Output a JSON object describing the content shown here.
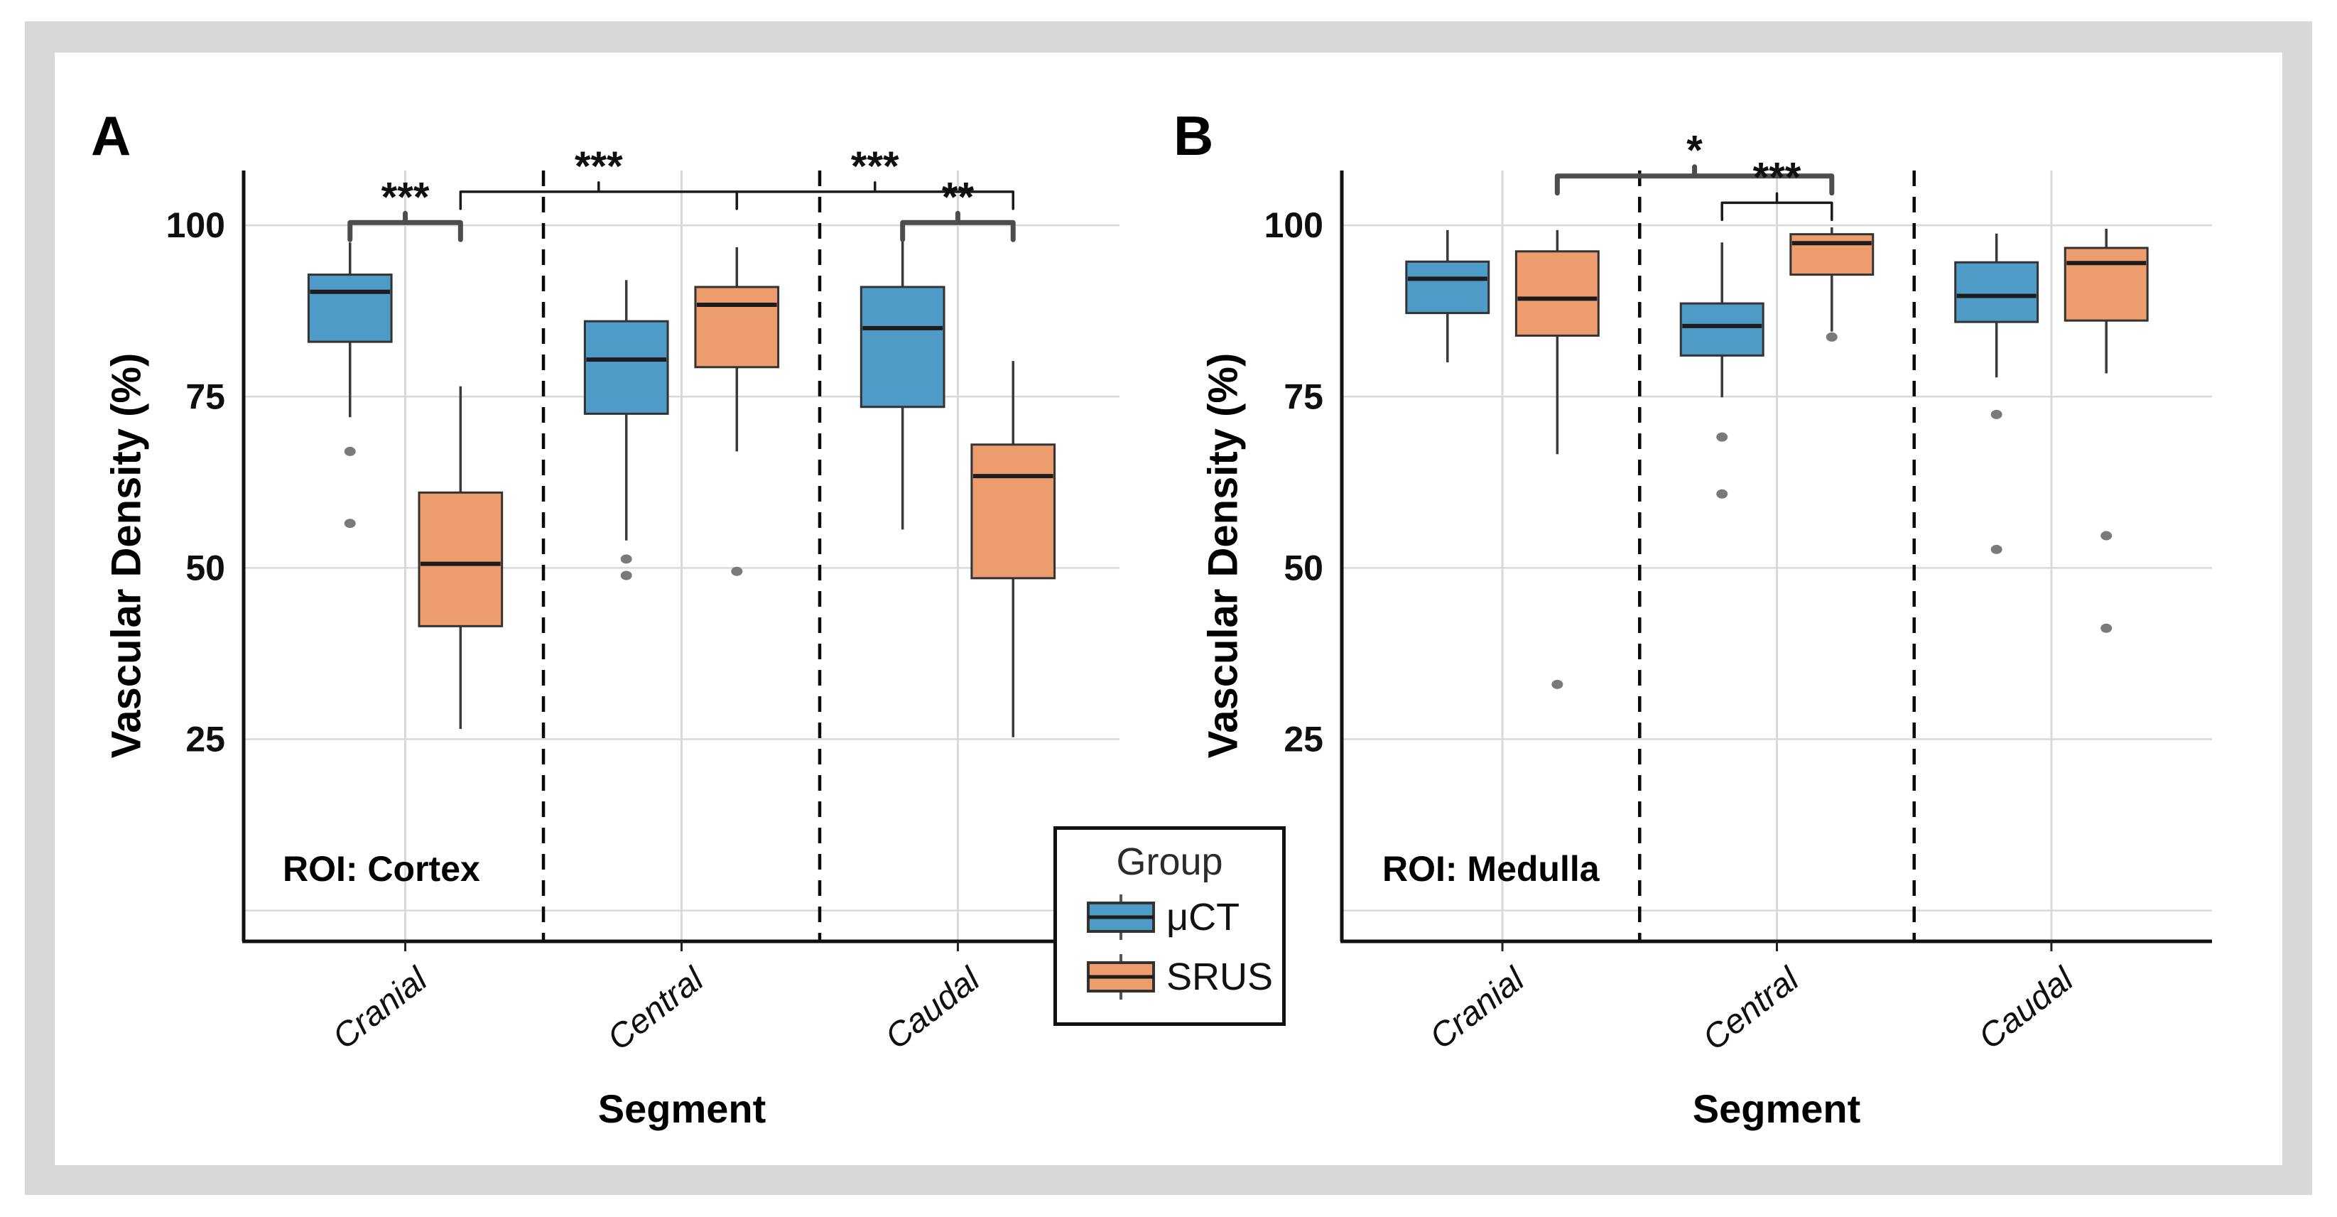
{
  "chart_data": {
    "type": "grouped_boxplot",
    "title": "",
    "ylabel": "Vascular Density (%)",
    "xlabel": "Segment",
    "yticks": [
      100,
      75,
      50,
      25
    ],
    "gridlines": [
      0,
      25,
      50,
      75,
      100
    ],
    "ylim": [
      -4.5,
      108
    ],
    "grid": "on",
    "categories": [
      "Cranial",
      "Central",
      "Caudal"
    ],
    "colors": {
      "uct_fill": "#4E9BC8",
      "srus_fill": "#EC9C6D",
      "box_border": "#333333",
      "median": "#1c1c1c",
      "whisker": "#3a3a3a",
      "outlier": "#7a7a7a",
      "gridline": "#d9d9d9",
      "divider": "#0a0a0a",
      "bracket_thick": "#4d4d4d",
      "bracket_thin": "#1a1a1a",
      "frame_gray": "#d8d8d8"
    },
    "legend": {
      "title": "Group",
      "position": "bottom-center-between-panels",
      "entries": [
        {
          "label": "μCT",
          "color": "#4E9BC8"
        },
        {
          "label": "SRUS",
          "color": "#EC9C6D"
        }
      ]
    },
    "panels": [
      {
        "label": "A",
        "roi_label": "ROI: Cortex",
        "series": [
          {
            "name": "μCT",
            "boxes": [
              {
                "category": "Cranial",
                "whislo": 72,
                "q1": 83,
                "med": 90.3,
                "q3": 92.8,
                "whishi": 97.5,
                "outliers": [
                  67,
                  56.5
                ]
              },
              {
                "category": "Central",
                "whislo": 54,
                "q1": 72.5,
                "med": 80.4,
                "q3": 86,
                "whishi": 92,
                "outliers": [
                  51.3,
                  48.9
                ]
              },
              {
                "category": "Caudal",
                "whislo": 55.6,
                "q1": 73.5,
                "med": 85,
                "q3": 91,
                "whishi": 97.6,
                "outliers": []
              }
            ]
          },
          {
            "name": "SRUS",
            "boxes": [
              {
                "category": "Cranial",
                "whislo": 26.5,
                "q1": 41.5,
                "med": 50.6,
                "q3": 61,
                "whishi": 76.5,
                "outliers": []
              },
              {
                "category": "Central",
                "whislo": 67,
                "q1": 79.3,
                "med": 88.4,
                "q3": 91,
                "whishi": 96.8,
                "outliers": [
                  49.5
                ]
              },
              {
                "category": "Caudal",
                "whislo": 25.3,
                "q1": 48.5,
                "med": 63.4,
                "q3": 68,
                "whishi": 80.2,
                "outliers": []
              }
            ]
          }
        ],
        "significance": [
          {
            "from": [
              "Cranial",
              "μCT"
            ],
            "to": [
              "Cranial",
              "SRUS"
            ],
            "label": "***",
            "y": 100.4,
            "weight": "thick"
          },
          {
            "from": [
              "Cranial",
              "SRUS"
            ],
            "to": [
              "Central",
              "SRUS"
            ],
            "label": "***",
            "y": 104.9,
            "weight": "thin"
          },
          {
            "from": [
              "Central",
              "SRUS"
            ],
            "to": [
              "Caudal",
              "SRUS"
            ],
            "label": "***",
            "y": 104.9,
            "weight": "thin"
          },
          {
            "from": [
              "Caudal",
              "μCT"
            ],
            "to": [
              "Caudal",
              "SRUS"
            ],
            "label": "**",
            "y": 100.4,
            "weight": "thick"
          }
        ]
      },
      {
        "label": "B",
        "roi_label": "ROI: Medulla",
        "series": [
          {
            "name": "μCT",
            "boxes": [
              {
                "category": "Cranial",
                "whislo": 80,
                "q1": 87.2,
                "med": 92.2,
                "q3": 94.7,
                "whishi": 99.3,
                "outliers": []
              },
              {
                "category": "Central",
                "whislo": 74.9,
                "q1": 81,
                "med": 85.3,
                "q3": 88.6,
                "whishi": 97.5,
                "outliers": [
                  69.1,
                  60.8
                ]
              },
              {
                "category": "Caudal",
                "whislo": 77.8,
                "q1": 85.9,
                "med": 89.7,
                "q3": 94.6,
                "whishi": 98.8,
                "outliers": [
                  72.4,
                  52.7
                ]
              }
            ]
          },
          {
            "name": "SRUS",
            "boxes": [
              {
                "category": "Cranial",
                "whislo": 66.6,
                "q1": 83.9,
                "med": 89.3,
                "q3": 96.2,
                "whishi": 99.3,
                "outliers": [
                  33
                ]
              },
              {
                "category": "Central",
                "whislo": 84.5,
                "q1": 92.8,
                "med": 97.4,
                "q3": 98.7,
                "whishi": 99.7,
                "outliers": [
                  83.7
                ]
              },
              {
                "category": "Caudal",
                "whislo": 78.4,
                "q1": 86.1,
                "med": 94.5,
                "q3": 96.7,
                "whishi": 99.5,
                "outliers": [
                  54.7,
                  41.2
                ]
              }
            ]
          }
        ],
        "significance": [
          {
            "from": [
              "Cranial",
              "SRUS"
            ],
            "to": [
              "Central",
              "SRUS"
            ],
            "label": "*",
            "y": 107.2,
            "weight": "thick"
          },
          {
            "from": [
              "Central",
              "μCT"
            ],
            "to": [
              "Central",
              "SRUS"
            ],
            "label": "***",
            "y": 103.3,
            "weight": "thin"
          }
        ]
      }
    ]
  }
}
